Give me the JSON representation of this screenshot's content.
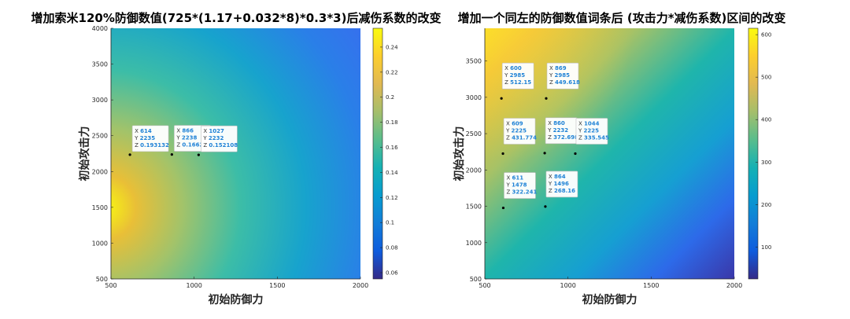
{
  "chart_data": [
    {
      "type": "heatmap",
      "title": "增加索米120%防御数值(725*(1.17+0.032*8)*0.3*3)后减伤系数的改变",
      "xlabel": "初始防御力",
      "ylabel": "初始攻击力",
      "xlim": [
        500,
        2000
      ],
      "ylim": [
        500,
        4000
      ],
      "xticks": [
        500,
        1000,
        1500,
        2000
      ],
      "yticks": [
        500,
        1000,
        1500,
        2000,
        2500,
        3000,
        3500,
        4000
      ],
      "colorbar": {
        "range": [
          0.055,
          0.255
        ],
        "ticks": [
          0.06,
          0.08,
          0.1,
          0.12,
          0.14,
          0.16,
          0.18,
          0.2,
          0.22,
          0.24
        ],
        "tick_labels": [
          "0.06",
          "0.08",
          "0.1",
          "0.12",
          "0.14",
          "0.16",
          "0.18",
          "0.2",
          "0.22",
          "0.24"
        ]
      },
      "colormap": "parula",
      "datatips": [
        {
          "x": 614,
          "y": 2235,
          "z": 0.193132,
          "lines": [
            "X 614",
            "Y 2235",
            "Z 0.193132"
          ]
        },
        {
          "x": 866,
          "y": 2238,
          "z": 0.1662,
          "lines": [
            "X 866",
            "Y 2238",
            "Z 0.1662"
          ]
        },
        {
          "x": 1027,
          "y": 2232,
          "z": 0.152108,
          "lines": [
            "X 1027",
            "Y 2232",
            "Z 0.152108"
          ]
        }
      ]
    },
    {
      "type": "heatmap",
      "title": "增加一个同左的防御数值词条后 (攻击力*减伤系数)区间的改变",
      "xlabel": "初始防御力",
      "ylabel": "初始攻击力",
      "xlim": [
        500,
        2000
      ],
      "ylim": [
        500,
        3950
      ],
      "xticks": [
        500,
        1000,
        1500,
        2000
      ],
      "yticks": [
        500,
        1000,
        1500,
        2000,
        2500,
        3000,
        3500
      ],
      "colorbar": {
        "range": [
          25,
          615
        ],
        "ticks": [
          100,
          200,
          300,
          400,
          500,
          600
        ],
        "tick_labels": [
          "100",
          "200",
          "300",
          "400",
          "500",
          "600"
        ]
      },
      "colormap": "parula",
      "datatips": [
        {
          "x": 600,
          "y": 2985,
          "z": 512.15,
          "lines": [
            "X 600",
            "Y 2985",
            "Z 512.15"
          ]
        },
        {
          "x": 869,
          "y": 2985,
          "z": 449.618,
          "lines": [
            "X 869",
            "Y 2985",
            "Z 449.618"
          ]
        },
        {
          "x": 609,
          "y": 2225,
          "z": 431.774,
          "lines": [
            "X 609",
            "Y 2225",
            "Z 431.774"
          ]
        },
        {
          "x": 860,
          "y": 2232,
          "z": 372.698,
          "lines": [
            "X 860",
            "Y 2232",
            "Z 372.698"
          ]
        },
        {
          "x": 1044,
          "y": 2225,
          "z": 335.545,
          "lines": [
            "X 1044",
            "Y 2225",
            "Z 335.545"
          ]
        },
        {
          "x": 611,
          "y": 1478,
          "z": 322.241,
          "lines": [
            "X 611",
            "Y 1478",
            "Z 322.241"
          ]
        },
        {
          "x": 864,
          "y": 1496,
          "z": 268.16,
          "lines": [
            "X 864",
            "Y 1496",
            "Z 268.16"
          ]
        }
      ]
    }
  ]
}
